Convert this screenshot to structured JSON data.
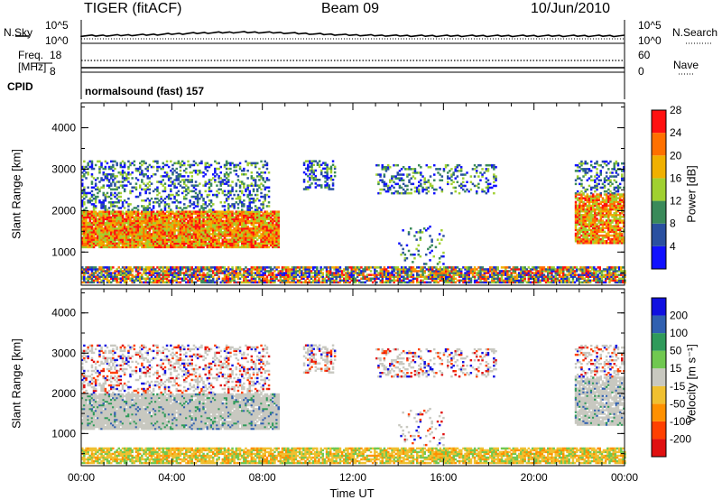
{
  "header": {
    "radar": "TIGER (fitACF)",
    "beam": "Beam 09",
    "date": "10/Jun/2010"
  },
  "top_strip": {
    "nsky_label": "N.Sky",
    "nsky_max": "10^5",
    "nsky_min": "10^0",
    "nsearch_label": "N.Search",
    "nsearch_max": "10^5",
    "nsearch_min": "10^0",
    "freq_label": "Freq.",
    "freq_unit": "[MHz]",
    "freq_max": "18",
    "freq_min": "8",
    "nave_label": "Nave",
    "nave_max": "60",
    "nave_min": "0",
    "cpid_label": "CPID",
    "cpid_value": "normalsound (fast) 157"
  },
  "chart_data": [
    {
      "type": "heatmap",
      "quantity": "Power",
      "ylabel": "Slant Range [km]",
      "ylim": [
        200,
        4600
      ],
      "y_ticks": [
        "1000",
        "2000",
        "3000",
        "4000"
      ],
      "colorbar_label": "Power [dB]",
      "colorbar_ticks": [
        "4",
        "8",
        "12",
        "16",
        "20",
        "24",
        "28"
      ],
      "colors": {
        "p4": "#1010ff",
        "p8": "#2a50a0",
        "p12": "#3a8a5a",
        "p16": "#a0d030",
        "p20": "#f0b000",
        "p24": "#ff7000",
        "p28": "#ff1010"
      }
    },
    {
      "type": "heatmap",
      "quantity": "Velocity",
      "ylabel": "Slant Range [km]",
      "xlabel": "Time UT",
      "ylim": [
        200,
        4600
      ],
      "y_ticks": [
        "1000",
        "2000",
        "3000",
        "4000"
      ],
      "x_ticks": [
        "00:00",
        "04:00",
        "08:00",
        "12:00",
        "16:00",
        "20:00",
        "00:00"
      ],
      "colorbar_label": "Velocity [m s⁻¹]",
      "colorbar_ticks": [
        "200",
        "100",
        "50",
        "15",
        "-15",
        "-50",
        "-100",
        "-200"
      ],
      "colors": {
        "v200": "#1010e0",
        "v100": "#3060b0",
        "v50": "#2f9a5a",
        "v15": "#70c850",
        "v0": "#c8c8c0",
        "vm15": "#f0c030",
        "vm50": "#ff9000",
        "vm100": "#ff4000",
        "vm200": "#e01010"
      }
    }
  ]
}
